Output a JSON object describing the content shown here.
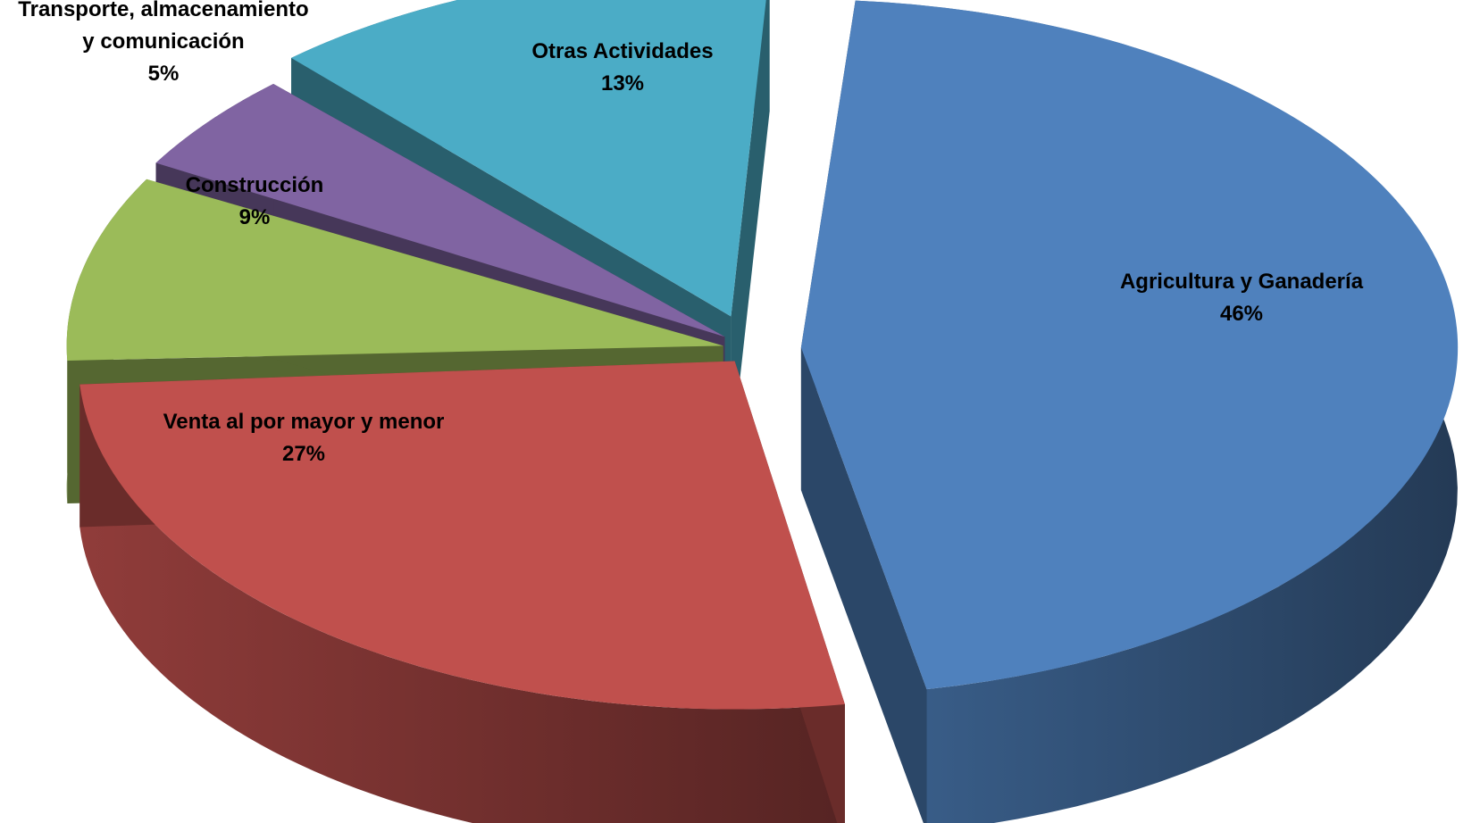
{
  "chart_data": {
    "type": "pie",
    "style": "3d-exploded",
    "title": "",
    "legend": "none",
    "slices": [
      {
        "label": "Agricultura y Ganadería",
        "value": 46,
        "value_label": "46%",
        "color": "#4F81BD"
      },
      {
        "label": "Venta al por mayor y menor",
        "value": 27,
        "value_label": "27%",
        "color": "#C0504D"
      },
      {
        "label": "Construcción",
        "value": 9,
        "value_label": "9%",
        "color": "#9BBB59"
      },
      {
        "label": "Transporte, almacenamiento y comunicación",
        "label_lines": [
          "Transporte, almacenamiento",
          "y comunicación"
        ],
        "value": 5,
        "value_label": "5%",
        "color": "#8064A2"
      },
      {
        "label": "Otras Actividades",
        "value": 13,
        "value_label": "13%",
        "color": "#4BACC6"
      }
    ]
  }
}
